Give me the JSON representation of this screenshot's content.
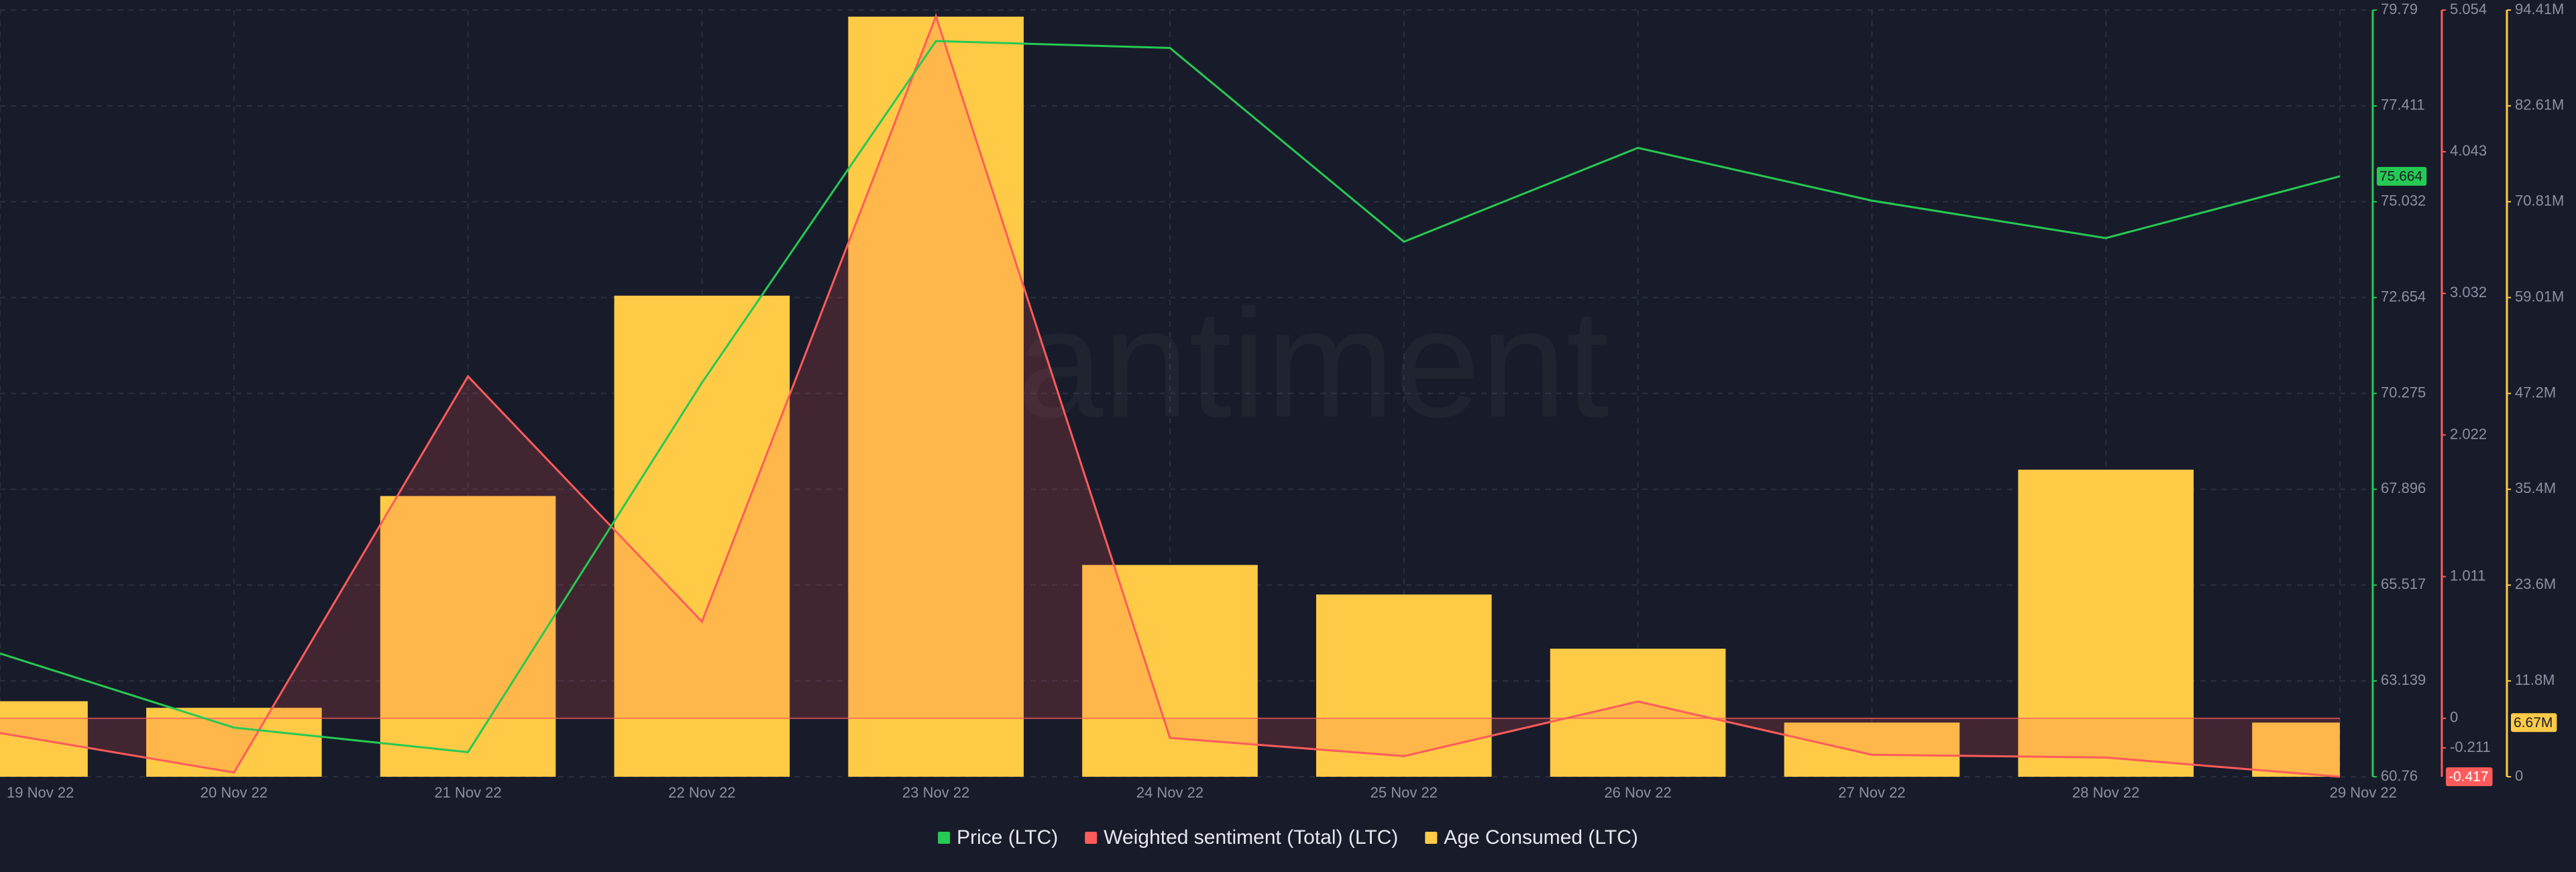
{
  "chart_data": {
    "type": "combo",
    "watermark": "santiment",
    "categories": [
      "19 Nov 22",
      "20 Nov 22",
      "21 Nov 22",
      "22 Nov 22",
      "23 Nov 22",
      "24 Nov 22",
      "25 Nov 22",
      "26 Nov 22",
      "27 Nov 22",
      "28 Nov 22",
      "29 Nov 22"
    ],
    "series": [
      {
        "name": "Price (LTC)",
        "type": "line",
        "axis": "y",
        "color": "#26c953",
        "values": [
          63.82,
          61.98,
          61.37,
          70.54,
          79.02,
          78.85,
          74.04,
          76.37,
          75.06,
          74.13,
          75.664
        ]
      },
      {
        "name": "Weighted sentiment (Total) (LTC)",
        "type": "area",
        "axis": "y2",
        "color": "#ff5b5b",
        "values": [
          -0.105,
          -0.387,
          2.44,
          0.69,
          5.01,
          -0.14,
          -0.27,
          0.12,
          -0.26,
          -0.28,
          -0.417
        ]
      },
      {
        "name": "Age Consumed (LTC)",
        "type": "bar",
        "axis": "y3",
        "color": "#ffcb47",
        "values": [
          9300000,
          8490000,
          34570000,
          59240000,
          93600000,
          26080000,
          22440000,
          15770000,
          6670000,
          37810000,
          6670000
        ],
        "value_labels": [
          null,
          null,
          null,
          null,
          null,
          null,
          null,
          null,
          null,
          null,
          "6.67M"
        ]
      }
    ],
    "ylim": [
      60.76,
      79.79
    ],
    "yticks": [
      60.76,
      63.139,
      65.517,
      67.896,
      70.275,
      72.654,
      75.032,
      77.411,
      79.79
    ],
    "y2lim": [
      -0.417,
      5.054
    ],
    "y2ticks": [
      -0.211,
      0,
      1.011,
      2.022,
      3.032,
      4.043,
      5.054
    ],
    "y3lim": [
      0,
      94410000
    ],
    "y3ticks": [
      0,
      {
        "value": 11800000,
        "label": "11.8M"
      },
      {
        "value": 23600000,
        "label": "23.6M"
      },
      {
        "value": 35400000,
        "label": "35.4M"
      },
      {
        "value": 47200000,
        "label": "47.2M"
      },
      {
        "value": 59010000,
        "label": "59.01M"
      },
      {
        "value": 70810000,
        "label": "70.81M"
      },
      {
        "value": 82610000,
        "label": "82.61M"
      },
      {
        "value": 94410000,
        "label": "94.41M"
      }
    ],
    "grid": true,
    "legend": "bottom"
  }
}
